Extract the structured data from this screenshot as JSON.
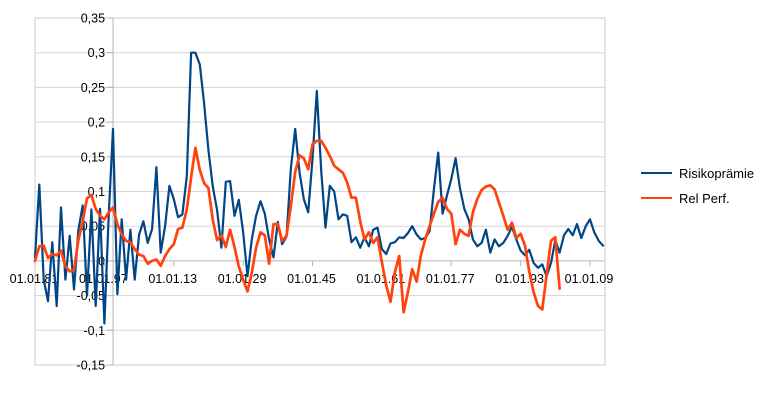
{
  "chart_data": {
    "type": "line",
    "title": "",
    "xlabel": "",
    "ylabel": "",
    "grid": "horizontal",
    "legend_position": "right",
    "ylim": [
      -0.15,
      0.35
    ],
    "y_tick_step": 0.05,
    "y_axis": {
      "tick_values": [
        0.35,
        0.3,
        0.25,
        0.2,
        0.15,
        0.1,
        0.05,
        0,
        -0.05,
        -0.1,
        -0.15
      ],
      "tick_labels": [
        "0,35",
        "0,3",
        "0,25",
        "0,2",
        "0,15",
        "0,1",
        "0,05",
        "0",
        "-0,05",
        "-0,1",
        "-0,15"
      ],
      "cross_year": 1899
    },
    "x_axis": {
      "tick_years": [
        1881,
        1897,
        1913,
        1929,
        1945,
        1961,
        1977,
        1993,
        2009
      ],
      "tick_labels": [
        "01.01.81",
        "01.01.97",
        "01.01.13",
        "01.01.29",
        "01.01.45",
        "01.01.61",
        "01.01.77",
        "01.01.93",
        "01.01.09"
      ],
      "start_year": 1881,
      "end_year": 2012
    },
    "series": [
      {
        "name": "Risikoprämie",
        "color": "#004586",
        "start_year": 1881,
        "values": [
          0.005,
          0.11,
          -0.027,
          -0.058,
          0.027,
          -0.065,
          0.077,
          -0.027,
          0.036,
          -0.041,
          0.045,
          0.08,
          -0.05,
          0.074,
          -0.065,
          0.075,
          -0.09,
          0.065,
          0.19,
          -0.048,
          0.06,
          -0.027,
          0.045,
          -0.027,
          0.038,
          0.057,
          0.026,
          0.046,
          0.135,
          0.012,
          0.05,
          0.108,
          0.089,
          0.063,
          0.067,
          0.122,
          0.3,
          0.3,
          0.283,
          0.227,
          0.16,
          0.107,
          0.073,
          0.019,
          0.114,
          0.115,
          0.065,
          0.088,
          0.042,
          -0.022,
          0.031,
          0.065,
          0.086,
          0.068,
          0.031,
          0.005,
          0.056,
          0.024,
          0.035,
          0.132,
          0.19,
          0.128,
          0.089,
          0.07,
          0.147,
          0.245,
          0.13,
          0.048,
          0.108,
          0.1,
          0.06,
          0.067,
          0.065,
          0.027,
          0.034,
          0.019,
          0.034,
          0.021,
          0.045,
          0.048,
          0.017,
          0.01,
          0.025,
          0.027,
          0.034,
          0.033,
          0.04,
          0.05,
          0.038,
          0.031,
          0.033,
          0.043,
          0.103,
          0.156,
          0.068,
          0.094,
          0.118,
          0.148,
          0.105,
          0.075,
          0.06,
          0.031,
          0.021,
          0.026,
          0.045,
          0.012,
          0.031,
          0.021,
          0.026,
          0.036,
          0.049,
          0.031,
          0.015,
          0.008,
          0.016,
          -0.003,
          -0.01,
          -0.005,
          -0.022,
          -0.003,
          0.03,
          0.012,
          0.037,
          0.046,
          0.037,
          0.053,
          0.033,
          0.05,
          0.06,
          0.041,
          0.029,
          0.022
        ]
      },
      {
        "name": "Rel Perf.",
        "color": "#ff420e",
        "start_year": 1881,
        "values": [
          0.0,
          0.021,
          0.022,
          0.004,
          0.01,
          0.008,
          0.015,
          -0.008,
          -0.015,
          -0.013,
          0.03,
          0.057,
          0.09,
          0.095,
          0.075,
          0.065,
          0.06,
          0.07,
          0.077,
          0.053,
          0.038,
          0.029,
          0.027,
          0.017,
          0.009,
          0.007,
          -0.004,
          0.0,
          0.002,
          -0.007,
          0.007,
          0.017,
          0.024,
          0.046,
          0.048,
          0.074,
          0.12,
          0.163,
          0.131,
          0.112,
          0.105,
          0.059,
          0.03,
          0.037,
          0.02,
          0.045,
          0.02,
          -0.008,
          -0.027,
          -0.044,
          -0.017,
          0.019,
          0.041,
          0.037,
          -0.004,
          0.053,
          0.053,
          0.029,
          0.036,
          0.079,
          0.128,
          0.152,
          0.148,
          0.132,
          0.168,
          0.173,
          0.173,
          0.163,
          0.151,
          0.137,
          0.132,
          0.127,
          0.113,
          0.091,
          0.091,
          0.057,
          0.031,
          0.041,
          0.026,
          0.034,
          -0.002,
          -0.035,
          -0.059,
          -0.016,
          0.007,
          -0.074,
          -0.045,
          -0.012,
          -0.03,
          0.008,
          0.031,
          0.05,
          0.068,
          0.085,
          0.091,
          0.075,
          0.068,
          0.024,
          0.045,
          0.039,
          0.036,
          0.07,
          0.089,
          0.102,
          0.107,
          0.109,
          0.103,
          0.084,
          0.065,
          0.045,
          0.055,
          0.033,
          0.039,
          0.022,
          -0.016,
          -0.045,
          -0.065,
          -0.07,
          -0.02,
          0.029,
          0.034,
          -0.04
        ]
      }
    ]
  },
  "legend": {
    "items": [
      {
        "label": "Risikoprämie",
        "color": "#004586"
      },
      {
        "label": "Rel Perf.",
        "color": "#ff420e"
      }
    ]
  },
  "colors": {
    "series1": "#004586",
    "series2": "#ff420e",
    "gridline": "#d5d5d5",
    "axis_line": "#b3b3b3",
    "border": "#cccccc",
    "text": "#000000",
    "background": "#ffffff"
  }
}
